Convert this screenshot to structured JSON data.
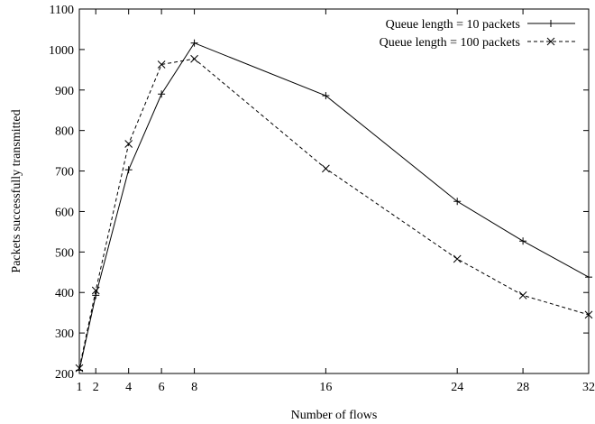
{
  "chart_data": {
    "type": "line",
    "xlabel": "Number of flows",
    "ylabel": "Packets successfully transmitted",
    "xlim": [
      1,
      32
    ],
    "ylim": [
      200,
      1100
    ],
    "xticks": [
      1,
      2,
      4,
      6,
      8,
      16,
      24,
      28,
      32
    ],
    "yticks": [
      200,
      300,
      400,
      500,
      600,
      700,
      800,
      900,
      1000,
      1100
    ],
    "grid": false,
    "legend_position": "top-right",
    "series": [
      {
        "name": "Queue length = 10 packets",
        "marker": "plus",
        "line_style": "solid",
        "color": "#000000",
        "x": [
          1,
          2,
          4,
          6,
          8,
          16,
          24,
          28,
          32
        ],
        "y": [
          208,
          393,
          703,
          890,
          1016,
          886,
          625,
          527,
          438
        ]
      },
      {
        "name": "Queue length = 100 packets",
        "marker": "cross",
        "line_style": "dashed",
        "color": "#000000",
        "x": [
          1,
          2,
          4,
          6,
          8,
          16,
          24,
          28,
          32
        ],
        "y": [
          213,
          405,
          767,
          963,
          977,
          706,
          483,
          393,
          345
        ]
      }
    ]
  }
}
